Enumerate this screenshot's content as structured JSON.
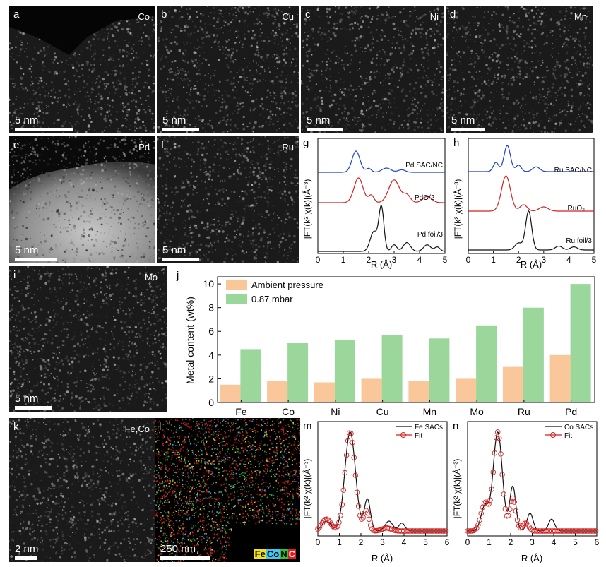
{
  "colors": {
    "blue": "#1f3fd4",
    "red": "#d42020",
    "black": "#111111",
    "orange": "#f9c79a",
    "green": "#9bd69b",
    "fe": "#f0e020",
    "co": "#40c8f0",
    "n": "#30c030",
    "c": "#e02020"
  },
  "micrographs": [
    {
      "label": "a",
      "element": "Co",
      "scale": "5 nm"
    },
    {
      "label": "b",
      "element": "Cu",
      "scale": "5 nm"
    },
    {
      "label": "c",
      "element": "Ni",
      "scale": "5 nm"
    },
    {
      "label": "d",
      "element": "Mn",
      "scale": "5 nm"
    },
    {
      "label": "e",
      "element": "Pd",
      "scale": "5 nm"
    },
    {
      "label": "f",
      "element": "Ru",
      "scale": "5 nm"
    },
    {
      "label": "i",
      "element": "Mo",
      "scale": "5 nm"
    },
    {
      "label": "k",
      "element": "Fe,Co",
      "scale": "2 nm"
    },
    {
      "label": "l",
      "element": "",
      "scale": "250 nm"
    }
  ],
  "eds_legend": [
    "Fe",
    "Co",
    "N",
    "C"
  ],
  "panels": {
    "g": {
      "label": "g",
      "ylabel": "|FT(k² χ(k)|(Å⁻³)",
      "xlabel": "R (Å)",
      "xticks": [
        "0",
        "1",
        "2",
        "3",
        "4",
        "5"
      ],
      "curves": [
        "Pd SAC/NC",
        "PdO/2",
        "Pd foil/3"
      ]
    },
    "h": {
      "label": "h",
      "ylabel": "|FT(k² χ(k)|(Å⁻³)",
      "xlabel": "R (Å)",
      "xticks": [
        "0",
        "1",
        "2",
        "3",
        "4",
        "5"
      ],
      "curves": [
        "Ru SAC/NC",
        "RuO₂",
        "Ru foil/3"
      ]
    },
    "m": {
      "label": "m",
      "ylabel": "|FT(k² χ(k)|(Å⁻³)",
      "xlabel": "R (Å)",
      "xticks": [
        "0",
        "1",
        "2",
        "3",
        "4",
        "5",
        "6"
      ],
      "legend": [
        "Fe SACs",
        "Fit"
      ]
    },
    "n": {
      "label": "n",
      "ylabel": "|FT(k² χ(k)|(Å⁻³)",
      "xlabel": "R (Å)",
      "xticks": [
        "0",
        "1",
        "2",
        "3",
        "4",
        "5",
        "6"
      ],
      "legend": [
        "Co SACs",
        "Fit"
      ]
    }
  },
  "chart_data": {
    "type": "bar",
    "label": "j",
    "categories": [
      "Fe",
      "Co",
      "Ni",
      "Cu",
      "Mn",
      "Mo",
      "Ru",
      "Pd"
    ],
    "series": [
      {
        "name": "Ambient pressure",
        "values": [
          1.5,
          1.8,
          1.7,
          2.0,
          1.8,
          2.0,
          3.0,
          4.0
        ]
      },
      {
        "name": "0.87 mbar",
        "values": [
          4.5,
          5.0,
          5.3,
          5.7,
          5.4,
          6.5,
          8.0,
          10.0
        ]
      }
    ],
    "ylabel": "Metal content (wt%)",
    "ylim": [
      0,
      10.6
    ],
    "yticks": [
      "0",
      "2",
      "4",
      "6",
      "8",
      "10"
    ]
  }
}
